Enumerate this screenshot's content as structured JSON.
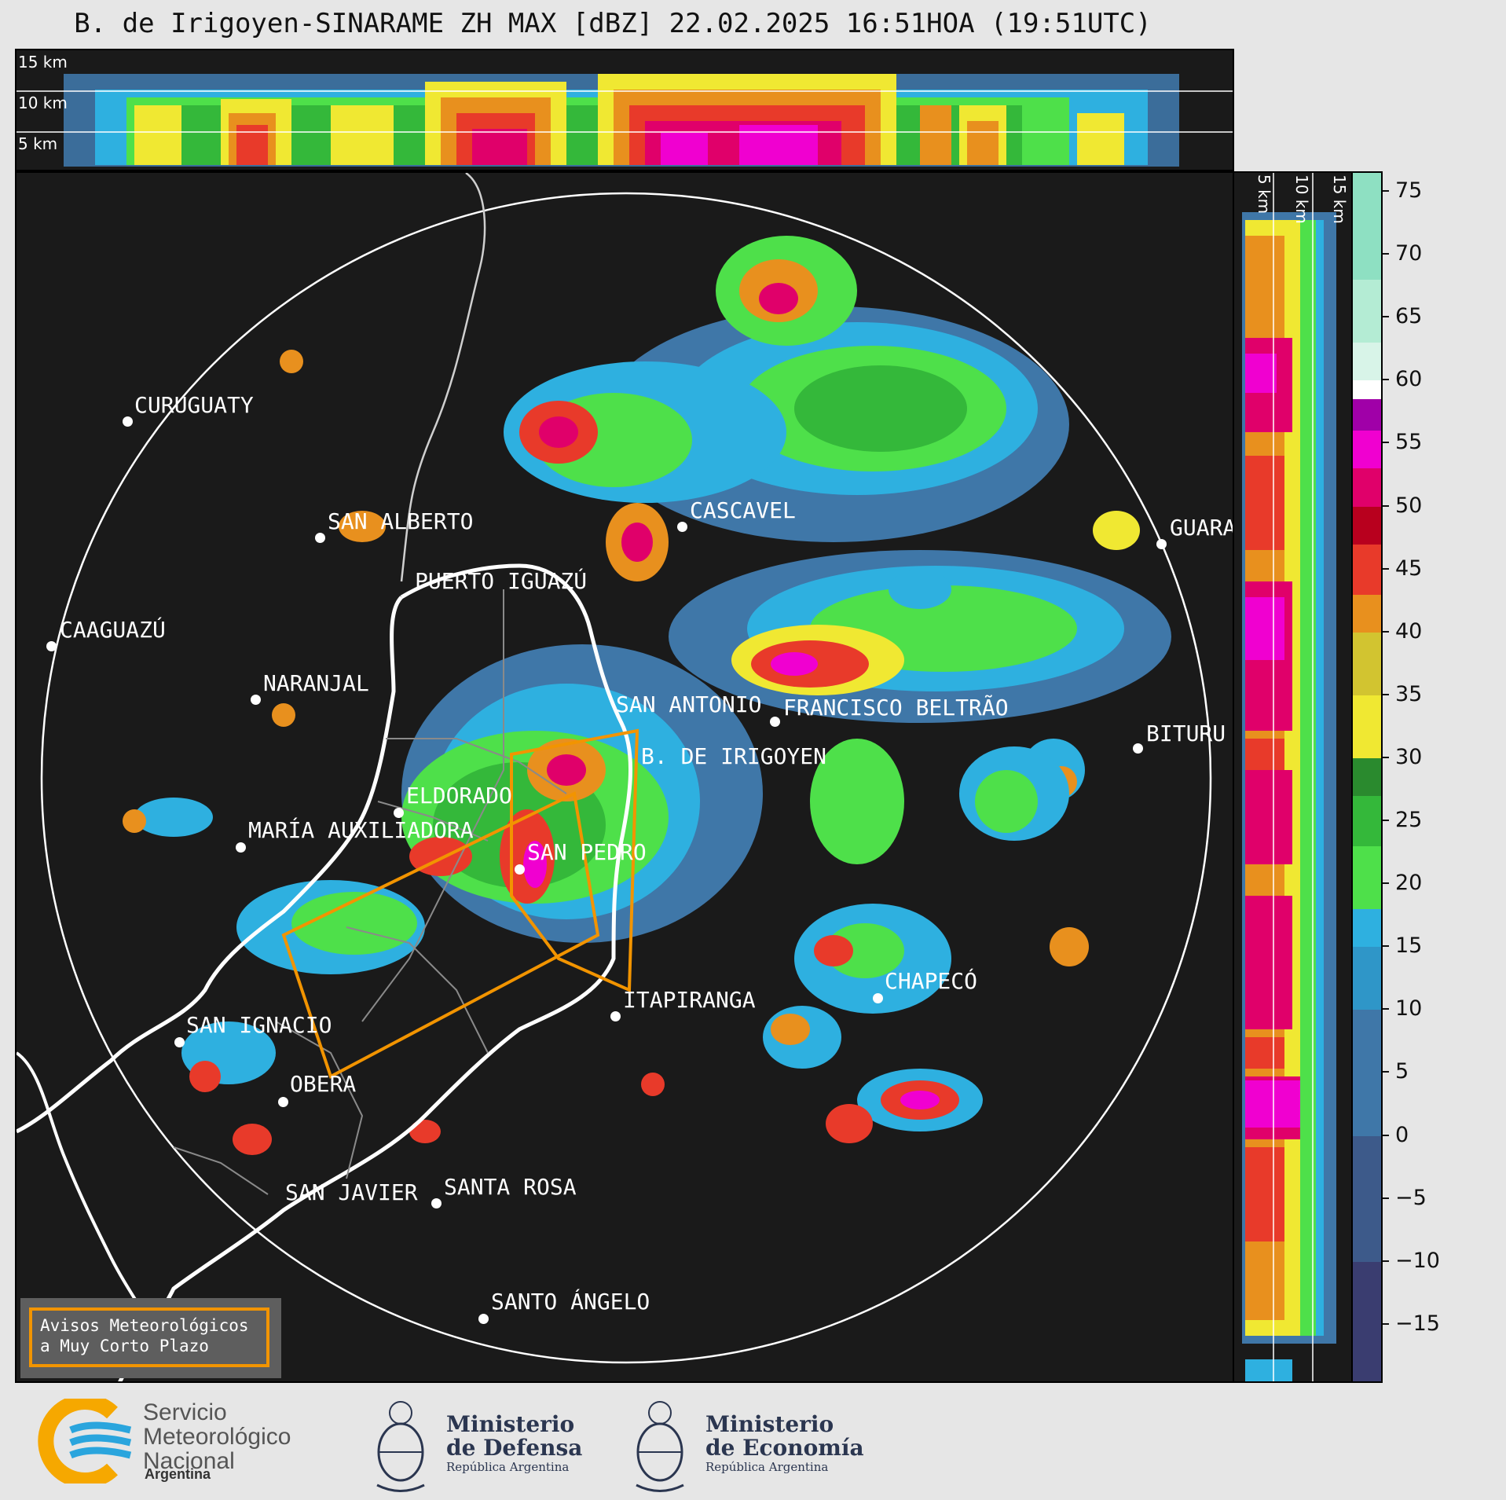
{
  "title": "B. de Irigoyen-SINARAME ZH MAX [dBZ] 22.02.2025 16:51HOA (19:51UTC)",
  "top_panel": {
    "altitude_labels": [
      "15 km",
      "10 km",
      "5 km"
    ]
  },
  "side_panel": {
    "altitude_labels": [
      "5 km",
      "10 km",
      "15 km"
    ]
  },
  "colorbar": {
    "unit": "dBZ",
    "ticks": [
      "75",
      "70",
      "65",
      "60",
      "55",
      "50",
      "45",
      "40",
      "35",
      "30",
      "25",
      "20",
      "15",
      "10",
      "5",
      "0",
      "−5",
      "−10",
      "−15"
    ],
    "range": [
      -19.5,
      76.5
    ],
    "stops": [
      {
        "from": -19.5,
        "color": "#3a3d70"
      },
      {
        "from": -10,
        "color": "#3d5a8a"
      },
      {
        "from": 0,
        "color": "#3f77a8"
      },
      {
        "from": 10,
        "color": "#2f96c8"
      },
      {
        "from": 15,
        "color": "#2eb0e0"
      },
      {
        "from": 18,
        "color": "#4ee04a"
      },
      {
        "from": 23,
        "color": "#34b83a"
      },
      {
        "from": 27,
        "color": "#2a8a2e"
      },
      {
        "from": 30,
        "color": "#f0e832"
      },
      {
        "from": 35,
        "color": "#d2c430"
      },
      {
        "from": 40,
        "color": "#e8901e"
      },
      {
        "from": 43,
        "color": "#e83a2a"
      },
      {
        "from": 47,
        "color": "#b8001e"
      },
      {
        "from": 50,
        "color": "#e0006a"
      },
      {
        "from": 53,
        "color": "#f000d0"
      },
      {
        "from": 56,
        "color": "#a000a8"
      },
      {
        "from": 58.5,
        "color": "#ffffff"
      },
      {
        "from": 60,
        "color": "#d8f4e8"
      },
      {
        "from": 63,
        "color": "#b4ecd4"
      },
      {
        "from": 68,
        "color": "#8ee0c2"
      }
    ]
  },
  "cities": [
    {
      "name": "CURUGUATY"
    },
    {
      "name": "SAN ALBERTO"
    },
    {
      "name": "CAAGUAZÚ"
    },
    {
      "name": "CASCAVEL"
    },
    {
      "name": "GUARA"
    },
    {
      "name": "PUERTO IGUAZÚ"
    },
    {
      "name": "NARANJAL"
    },
    {
      "name": "SAN ANTONIO"
    },
    {
      "name": "FRANCISCO BELTRÃO"
    },
    {
      "name": "B. DE IRIGOYEN"
    },
    {
      "name": "BITURU"
    },
    {
      "name": "ELDORADO"
    },
    {
      "name": "MARÍA AUXILIADORA"
    },
    {
      "name": "SAN PEDRO"
    },
    {
      "name": "CHAPECÓ"
    },
    {
      "name": "ITAPIRANGA"
    },
    {
      "name": "SAN IGNACIO"
    },
    {
      "name": "OBERA"
    },
    {
      "name": "SAN JAVIER"
    },
    {
      "name": "SANTA ROSA"
    },
    {
      "name": "SANTO ÁNGELO"
    }
  ],
  "legend": {
    "line1": "Avisos Meteorológicos",
    "line2": "a Muy Corto Plazo",
    "warning_color": "#f29400"
  },
  "footer": {
    "smn": {
      "line1": "Servicio",
      "line2": "Meteorológico",
      "line3": "Nacional",
      "country": "Argentina"
    },
    "defensa": {
      "line1": "Ministerio",
      "line2": "de Defensa",
      "sub": "República Argentina"
    },
    "economia": {
      "line1": "Ministerio",
      "line2": "de Economía",
      "sub": "República Argentina"
    }
  }
}
